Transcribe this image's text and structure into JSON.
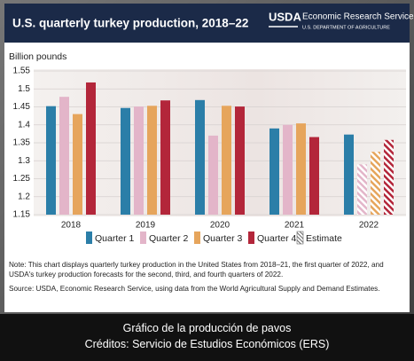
{
  "header": {
    "logo": "USDA",
    "agency": "Economic Research Service",
    "department": "U.S. DEPARTMENT OF AGRICULTURE"
  },
  "chart_data": {
    "type": "bar",
    "title": "U.S. quarterly turkey production, 2018–22",
    "y_label": "Billion pounds",
    "categories": [
      "2018",
      "2019",
      "2020",
      "2021",
      "2022"
    ],
    "series": [
      {
        "name": "Quarter 1",
        "color": "#2b7ea8",
        "values": [
          1.452,
          1.447,
          1.469,
          1.39,
          1.373
        ],
        "estimate": [
          false,
          false,
          false,
          false,
          false
        ]
      },
      {
        "name": "Quarter 2",
        "color": "#e3b5c9",
        "values": [
          1.478,
          1.451,
          1.37,
          1.4,
          1.29
        ],
        "estimate": [
          false,
          false,
          false,
          false,
          true
        ]
      },
      {
        "name": "Quarter 3",
        "color": "#e6a55c",
        "values": [
          1.43,
          1.453,
          1.453,
          1.404,
          1.325
        ],
        "estimate": [
          false,
          false,
          false,
          false,
          true
        ]
      },
      {
        "name": "Quarter 4",
        "color": "#b3263a",
        "values": [
          1.518,
          1.468,
          1.451,
          1.366,
          1.358
        ],
        "estimate": [
          false,
          false,
          false,
          false,
          true
        ]
      }
    ],
    "estimate_label": "Estimate",
    "ylim": [
      1.15,
      1.55
    ],
    "yticks": [
      1.15,
      1.2,
      1.25,
      1.3,
      1.35,
      1.4,
      1.45,
      1.5,
      1.55
    ],
    "grid": true,
    "note": "Note: This chart displays quarterly turkey production in the United States from 2018–21, the first quarter of 2022, and USDA's turkey production forecasts for the second, third, and fourth quarters of 2022.",
    "source": "Source: USDA, Economic Research Service, using data from the World Agricultural Supply and Demand Estimates."
  },
  "caption": [
    "Gráfico de la producción de pavos",
    "Créditos: Servicio de Estudios Económicos (ERS)"
  ]
}
